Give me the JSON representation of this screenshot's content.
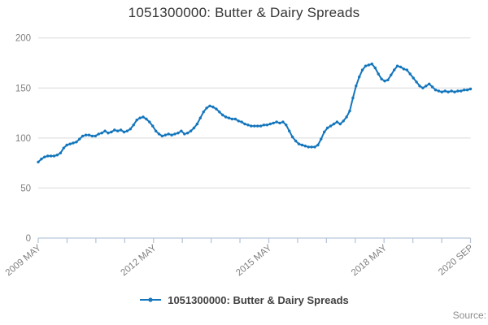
{
  "title": "1051300000: Butter & Dairy Spreads",
  "legend": {
    "label": "1051300000: Butter & Dairy Spreads"
  },
  "source_label": "Source:",
  "colors": {
    "line": "#1476bc",
    "grid": "#d9d9d9",
    "axis": "#b7c6dc",
    "tick_text": "#7f7f7f",
    "title_text": "#363636",
    "legend_text": "#414042",
    "source_text": "#8c8c8c"
  },
  "chart_data": {
    "type": "line",
    "title": "1051300000: Butter & Dairy Spreads",
    "frequency": "monthly",
    "x_start": "2009 MAY",
    "x_end": "2020 SEP",
    "ylim": [
      0,
      200
    ],
    "y_ticks": [
      0,
      50,
      100,
      150,
      200
    ],
    "x_tick_count": 16,
    "x_labeled_ticks": {
      "0": "2009 MAY",
      "4": "2012 MAY",
      "8": "2015 MAY",
      "12": "2018 MAY",
      "15": "2020 SEP"
    },
    "grid": "horizontal",
    "legend_position": "bottom-center",
    "marker": "point",
    "series": [
      {
        "name": "1051300000: Butter & Dairy Spreads",
        "values": [
          76,
          79,
          81,
          82,
          82,
          82,
          83,
          85,
          90,
          93,
          94,
          95,
          96,
          99,
          102,
          103,
          103,
          102,
          102,
          104,
          105,
          107,
          105,
          106,
          108,
          107,
          108,
          106,
          107,
          109,
          113,
          118,
          120,
          121,
          119,
          116,
          112,
          107,
          104,
          102,
          103,
          104,
          103,
          104,
          105,
          107,
          104,
          105,
          107,
          110,
          114,
          120,
          126,
          130,
          132,
          131,
          129,
          126,
          123,
          121,
          120,
          119,
          119,
          117,
          116,
          114,
          113,
          112,
          112,
          112,
          112,
          113,
          113,
          114,
          115,
          116,
          115,
          116,
          113,
          107,
          101,
          97,
          94,
          93,
          92,
          91,
          91,
          91,
          93,
          99,
          106,
          110,
          112,
          114,
          116,
          114,
          117,
          121,
          127,
          140,
          152,
          161,
          168,
          172,
          173,
          174,
          170,
          164,
          159,
          157,
          158,
          163,
          168,
          172,
          171,
          169,
          168,
          164,
          160,
          156,
          152,
          150,
          152,
          154,
          151,
          148,
          147,
          146,
          147,
          146,
          147,
          146,
          147,
          147,
          148,
          148,
          149
        ]
      }
    ]
  }
}
